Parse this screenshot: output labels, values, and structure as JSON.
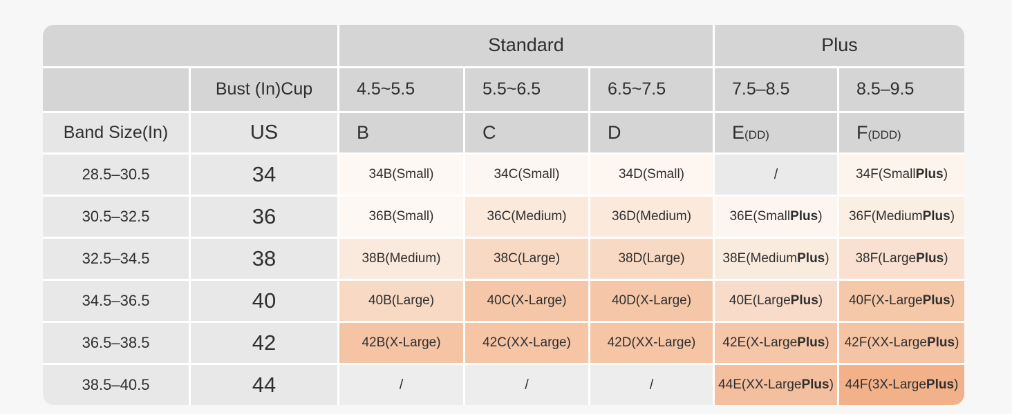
{
  "colors": {
    "page_bg": "#f7f7f7",
    "gap": "#ffffff",
    "header_dark": "#d5d5d5",
    "header_light": "#e6e6e6",
    "row_label_bg": "#e8e8e8",
    "text": "#2f2f2f"
  },
  "chart_data": {
    "type": "table",
    "bold_word": "Plus",
    "header": {
      "groups": [
        {
          "label": "Standard",
          "span": 3
        },
        {
          "label": "Plus",
          "span": 2
        }
      ],
      "bust_cup_label": "Bust (In)Cup",
      "cup_depth_ranges": [
        "4.5~5.5",
        "5.5~6.5",
        "6.5~7.5",
        "7.5–8.5",
        "8.5–9.5"
      ],
      "band_size_label": "Band Size(In)",
      "us_label": "US",
      "cups": [
        {
          "cup": "B",
          "alias": ""
        },
        {
          "cup": "C",
          "alias": ""
        },
        {
          "cup": "D",
          "alias": ""
        },
        {
          "cup": "E",
          "alias": "(DD)"
        },
        {
          "cup": "F",
          "alias": "(DDD)"
        }
      ]
    },
    "rows": [
      {
        "band": "28.5–30.5",
        "us": "34",
        "cells": [
          {
            "text": "34B(Small)",
            "bg": "#fdf8f4"
          },
          {
            "text": "34C(Small)",
            "bg": "#fdf7f3"
          },
          {
            "text": "34D(Small)",
            "bg": "#fdf6f1"
          },
          {
            "text": "/",
            "bg": "#eaeaea"
          },
          {
            "text": "34F(Small Plus)",
            "bg": "#fcf4ed"
          }
        ]
      },
      {
        "band": "30.5–32.5",
        "us": "36",
        "cells": [
          {
            "text": "36B(Small)",
            "bg": "#fdf8f4"
          },
          {
            "text": "36C(Medium)",
            "bg": "#fbe9dc"
          },
          {
            "text": "36D(Medium)",
            "bg": "#fbe9dc"
          },
          {
            "text": "36E(Small Plus)",
            "bg": "#fdf5ef"
          },
          {
            "text": "36F(Medium Plus)",
            "bg": "#fbeee3"
          }
        ]
      },
      {
        "band": "32.5–34.5",
        "us": "38",
        "cells": [
          {
            "text": "38B(Medium)",
            "bg": "#faeadd"
          },
          {
            "text": "38C(Large)",
            "bg": "#f8d9c3"
          },
          {
            "text": "38D(Large)",
            "bg": "#f8d9c3"
          },
          {
            "text": "38E(Medium Plus)",
            "bg": "#faebdf"
          },
          {
            "text": "38F(Large Plus)",
            "bg": "#f9e0d0"
          }
        ]
      },
      {
        "band": "34.5–36.5",
        "us": "40",
        "cells": [
          {
            "text": "40B(Large)",
            "bg": "#f7d9c4"
          },
          {
            "text": "40C(X-Large)",
            "bg": "#f5c7a8"
          },
          {
            "text": "40D(X-Large)",
            "bg": "#f5c7a8"
          },
          {
            "text": "40E(Large Plus)",
            "bg": "#f8dcc9"
          },
          {
            "text": "40F(X-Large Plus)",
            "bg": "#f5c8a9"
          }
        ]
      },
      {
        "band": "36.5–38.5",
        "us": "42",
        "cells": [
          {
            "text": "42B(X-Large)",
            "bg": "#f5c4a5"
          },
          {
            "text": "42C(XX-Large)",
            "bg": "#f5c5a6"
          },
          {
            "text": "42D(XX-Large)",
            "bg": "#f5c5a6"
          },
          {
            "text": "42E(X-Large Plus)",
            "bg": "#f5c6a8"
          },
          {
            "text": "42F(XX-Large Plus)",
            "bg": "#f5c4a4"
          }
        ]
      },
      {
        "band": "38.5–40.5",
        "us": "44",
        "cells": [
          {
            "text": "/",
            "bg": "#ededed"
          },
          {
            "text": "/",
            "bg": "#ededed"
          },
          {
            "text": "/",
            "bg": "#ededed"
          },
          {
            "text": "44E(XX-Large Plus)",
            "bg": "#f4bf9e"
          },
          {
            "text": "44F(3X-Large Plus)",
            "bg": "#f2b189"
          }
        ]
      }
    ]
  }
}
